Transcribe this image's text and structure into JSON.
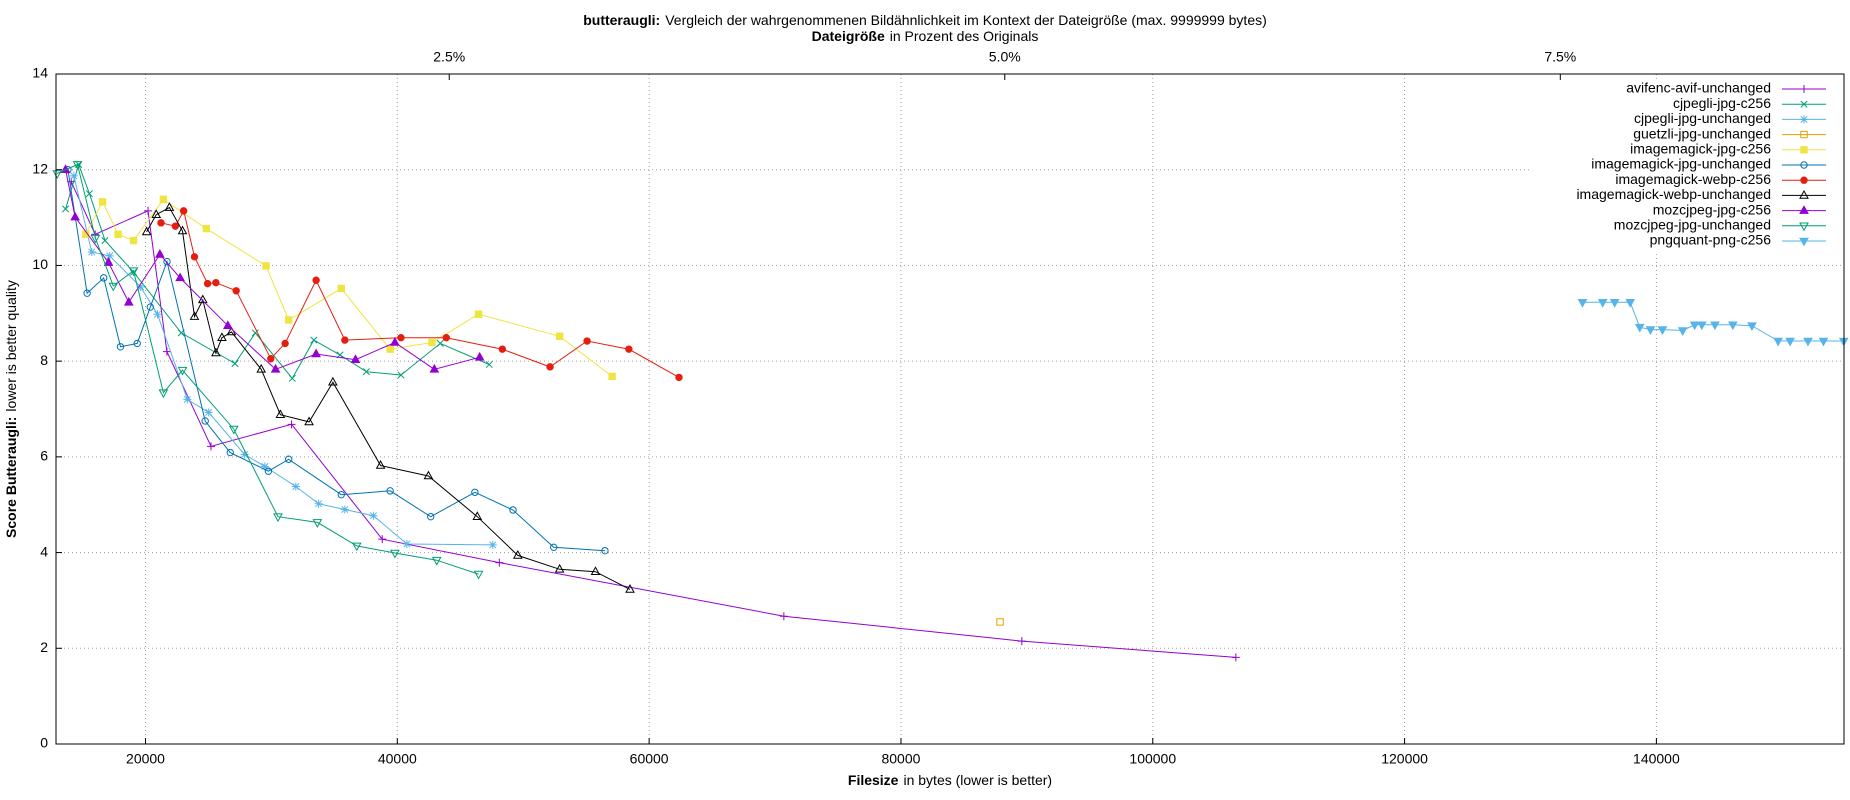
{
  "chart_data": {
    "type": "line",
    "title": [
      "butteraugli:",
      "Vergleich der wahrgenommenen Bildähnlichkeit im Kontext der Dateigröße (max. 9999999 bytes)"
    ],
    "x2label": [
      "Dateigröße",
      "in Prozent des Originals"
    ],
    "xlabel": [
      "Filesize",
      "in bytes (lower is better)"
    ],
    "ylabel": [
      "Score Butteraugli:",
      "lower is better quality"
    ],
    "xlim": [
      12891,
      154900
    ],
    "ylim": [
      0,
      14
    ],
    "xticks": [
      20000,
      40000,
      60000,
      80000,
      100000,
      120000,
      140000
    ],
    "yticks": [
      0,
      2,
      4,
      6,
      8,
      10,
      12,
      14
    ],
    "x2lim": [
      0.7304,
      8.7767
    ],
    "x2ticks": [
      {
        "value": 2.5,
        "label": "2.5%"
      },
      {
        "value": 5.0,
        "label": "5.0%"
      },
      {
        "value": 7.5,
        "label": "7.5%"
      }
    ],
    "grid": true,
    "legend": "top-right",
    "series": [
      {
        "name": "avifenc-avif-unchanged",
        "color": "#9400d3",
        "marker": "plus",
        "x": [
          14100,
          16000,
          20200,
          21700,
          25200,
          31600,
          38800,
          48100,
          70700,
          89600,
          106600
        ],
        "values": [
          11.75,
          10.65,
          11.14,
          8.2,
          6.22,
          6.68,
          4.28,
          3.79,
          2.67,
          2.15,
          1.81
        ]
      },
      {
        "name": "cjpegli-jpg-c256",
        "color": "#009e73",
        "marker": "cross",
        "x": [
          13650,
          14690,
          15540,
          16780,
          19050,
          22840,
          27110,
          28720,
          31660,
          33370,
          35450,
          37540,
          40290,
          43410,
          47300
        ],
        "values": [
          11.18,
          12.11,
          11.5,
          10.52,
          9.86,
          8.59,
          7.95,
          8.59,
          7.64,
          8.44,
          8.13,
          7.78,
          7.71,
          8.37,
          7.93
        ]
      },
      {
        "name": "cjpegli-jpg-unchanged",
        "color": "#56b4e9",
        "marker": "star",
        "x": [
          14310,
          15730,
          17160,
          19620,
          20950,
          23320,
          25020,
          27870,
          29480,
          31940,
          33750,
          35830,
          38100,
          40760,
          47580
        ],
        "values": [
          11.87,
          10.28,
          10.2,
          9.55,
          8.98,
          7.2,
          6.93,
          6.05,
          5.8,
          5.38,
          5.02,
          4.9,
          4.77,
          4.18,
          4.16
        ]
      },
      {
        "name": "guetzli-jpg-unchanged",
        "color": "#e69f00",
        "marker": "square-open",
        "x": [
          87870
        ],
        "values": [
          2.55
        ]
      },
      {
        "name": "imagemagick-jpg-c256",
        "color": "#f0e442",
        "marker": "square",
        "x": [
          15260,
          16590,
          17820,
          19050,
          21420,
          24830,
          29570,
          31370,
          35550,
          39430,
          42750,
          46450,
          52890,
          57060
        ],
        "values": [
          10.65,
          11.33,
          10.65,
          10.52,
          11.38,
          10.77,
          9.99,
          8.86,
          9.52,
          8.25,
          8.39,
          8.98,
          8.52,
          7.68
        ]
      },
      {
        "name": "imagemagick-jpg-unchanged",
        "color": "#0072b2",
        "marker": "circle-open",
        "x": [
          13840,
          15360,
          16680,
          18010,
          19340,
          20380,
          21710,
          24740,
          26730,
          29760,
          31370,
          35550,
          39430,
          42650,
          46160,
          49190,
          52420,
          56490
        ],
        "values": [
          12.0,
          9.42,
          9.74,
          8.3,
          8.37,
          9.13,
          10.08,
          6.75,
          6.09,
          5.7,
          5.95,
          5.21,
          5.29,
          4.75,
          5.26,
          4.89,
          4.11,
          4.04
        ]
      },
      {
        "name": "imagemagick-webp-c256",
        "color": "#e51e10",
        "marker": "circle",
        "x": [
          21230,
          22370,
          23030,
          23890,
          24930,
          25590,
          27200,
          29950,
          31090,
          33550,
          35830,
          40290,
          43890,
          48340,
          52130,
          55070,
          58390,
          62370
        ],
        "values": [
          10.89,
          10.82,
          11.14,
          10.18,
          9.62,
          9.64,
          9.47,
          8.05,
          8.37,
          9.69,
          8.44,
          8.49,
          8.49,
          8.25,
          7.88,
          8.42,
          8.25,
          7.66
        ]
      },
      {
        "name": "imagemagick-webp-unchanged",
        "color": "#000000",
        "marker": "triangle-open",
        "x": [
          20090,
          20850,
          21900,
          22940,
          23890,
          24550,
          25590,
          26070,
          26820,
          29190,
          30710,
          32990,
          34880,
          38670,
          42470,
          46350,
          49570,
          52890,
          55740,
          58480
        ],
        "values": [
          10.7,
          11.06,
          11.21,
          10.72,
          8.93,
          9.28,
          8.17,
          8.49,
          8.61,
          7.83,
          6.88,
          6.73,
          7.56,
          5.82,
          5.6,
          4.75,
          3.94,
          3.65,
          3.6,
          3.23
        ]
      },
      {
        "name": "mozcjpeg-jpg-c256",
        "color": "#9400d3",
        "marker": "triangle",
        "x": [
          13650,
          14410,
          17060,
          18670,
          21140,
          22750,
          26540,
          30330,
          33550,
          36680,
          39810,
          42940,
          46540
        ],
        "values": [
          12.0,
          11.01,
          10.06,
          9.23,
          10.23,
          9.74,
          8.74,
          7.83,
          8.15,
          8.03,
          8.39,
          7.83,
          8.08
        ]
      },
      {
        "name": "mozcjpeg-jpg-unchanged",
        "color": "#009e73",
        "marker": "triangle-down-open",
        "x": [
          12990,
          14600,
          16020,
          17440,
          19050,
          21420,
          22940,
          27010,
          30520,
          33650,
          36780,
          39810,
          43130,
          46450
        ],
        "values": [
          11.92,
          12.11,
          10.57,
          9.57,
          9.89,
          7.34,
          7.81,
          6.58,
          4.75,
          4.63,
          4.14,
          3.99,
          3.84,
          3.55
        ]
      },
      {
        "name": "pngquant-png-c256",
        "color": "#56b4e9",
        "marker": "triangle-down",
        "x": [
          134130,
          135740,
          136690,
          137920,
          138680,
          139530,
          140480,
          142090,
          143040,
          143610,
          144650,
          146070,
          147590,
          149670,
          150620,
          152040,
          153270,
          154880
        ],
        "values": [
          9.23,
          9.23,
          9.23,
          9.23,
          8.71,
          8.66,
          8.66,
          8.64,
          8.76,
          8.76,
          8.76,
          8.76,
          8.74,
          8.42,
          8.42,
          8.42,
          8.42,
          8.42
        ]
      }
    ]
  }
}
